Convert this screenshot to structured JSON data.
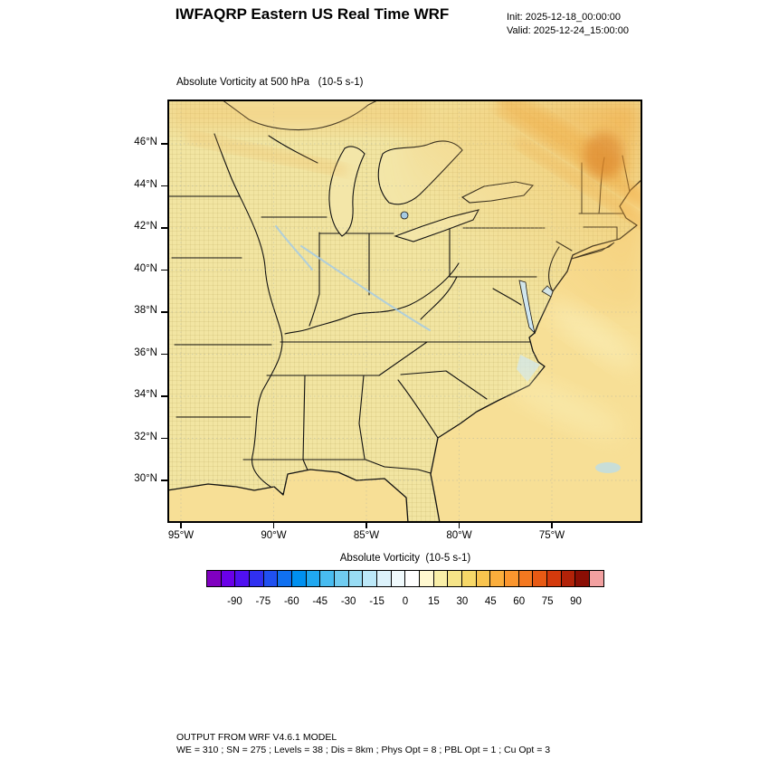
{
  "header": {
    "title": "IWFAQRP Eastern US Real Time WRF",
    "init_line": "Init: 2025-12-18_00:00:00",
    "valid_line": "Valid: 2025-12-24_15:00:00"
  },
  "plot": {
    "subtitle": "Absolute Vorticity at 500 hPa   (10-5 s-1)",
    "lat_ticks": [
      "46°N",
      "44°N",
      "42°N",
      "40°N",
      "38°N",
      "36°N",
      "34°N",
      "32°N",
      "30°N"
    ],
    "lon_ticks": [
      "95°W",
      "90°W",
      "85°W",
      "80°W",
      "75°W"
    ]
  },
  "colorbar": {
    "label": "Absolute Vorticity  (10-5 s-1)",
    "ticks": [
      "-90",
      "-75",
      "-60",
      "-45",
      "-30",
      "-15",
      "0",
      "15",
      "30",
      "45",
      "60",
      "75",
      "90"
    ],
    "colors": [
      "#8000C0",
      "#6A00E8",
      "#5010F0",
      "#3030F0",
      "#2050F0",
      "#1070F0",
      "#0090F0",
      "#20A8F0",
      "#48BCF0",
      "#70CCF0",
      "#98DCF4",
      "#BCE8F8",
      "#DCF2FB",
      "#F0FAFD",
      "#FFFFFF",
      "#FFF8D0",
      "#F9EFA8",
      "#F5E488",
      "#F7D868",
      "#F9C44E",
      "#FBAE3C",
      "#FB962E",
      "#F47820",
      "#E85A14",
      "#D43A0C",
      "#B22208",
      "#8B0E04",
      "#F2A0A0"
    ]
  },
  "map": {
    "colors": {
      "land": "#F2E5A2",
      "ocean": "#F7DF96",
      "lake": "#F3E6A8",
      "orange_high": "#EE9D2E",
      "deep_orange": "#D97B22",
      "river_blue": "#A6CBE4",
      "bay_blue": "#CFE8F4"
    }
  },
  "footer": {
    "line1": "OUTPUT FROM WRF V4.6.1 MODEL",
    "line2": "WE = 310 ; SN = 275 ; Levels = 38 ; Dis = 8km ; Phys Opt = 8 ; PBL Opt = 1 ; Cu Opt = 3"
  }
}
